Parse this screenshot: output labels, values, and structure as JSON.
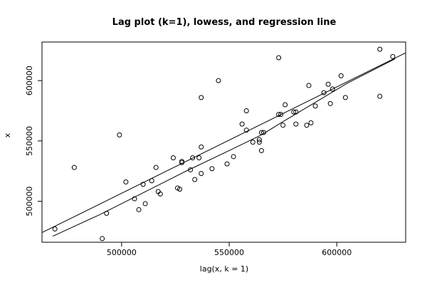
{
  "chart_data": {
    "type": "scatter",
    "title": "Lag plot (k=1), lowess, and regression line",
    "xlabel": "lag(x, k = 1)",
    "ylabel": "x",
    "xlim": [
      463000,
      632000
    ],
    "ylim": [
      466000,
      632000
    ],
    "x_ticks": [
      500000,
      550000,
      600000
    ],
    "x_tick_labels": [
      "500000",
      "550000",
      "600000"
    ],
    "y_ticks": [
      500000,
      550000,
      600000
    ],
    "y_tick_labels": [
      "500000",
      "550000",
      "600000"
    ],
    "points": [
      [
        469000,
        477000
      ],
      [
        478000,
        528000
      ],
      [
        491000,
        469000
      ],
      [
        493000,
        490000
      ],
      [
        499000,
        555000
      ],
      [
        502000,
        516000
      ],
      [
        506000,
        502000
      ],
      [
        508000,
        493000
      ],
      [
        510000,
        514000
      ],
      [
        511000,
        498000
      ],
      [
        514000,
        517000
      ],
      [
        516000,
        528000
      ],
      [
        517000,
        508000
      ],
      [
        518000,
        506000
      ],
      [
        524000,
        536000
      ],
      [
        526000,
        511000
      ],
      [
        527000,
        510000
      ],
      [
        528000,
        533000
      ],
      [
        528000,
        532000
      ],
      [
        532000,
        526000
      ],
      [
        533000,
        536000
      ],
      [
        534000,
        518000
      ],
      [
        536000,
        536000
      ],
      [
        537000,
        523000
      ],
      [
        537000,
        545000
      ],
      [
        537000,
        586000
      ],
      [
        542000,
        527000
      ],
      [
        545000,
        600000
      ],
      [
        549000,
        531000
      ],
      [
        552000,
        537000
      ],
      [
        556000,
        564000
      ],
      [
        558000,
        575000
      ],
      [
        558000,
        559000
      ],
      [
        561000,
        549000
      ],
      [
        564000,
        551000
      ],
      [
        564000,
        549000
      ],
      [
        565000,
        542000
      ],
      [
        565000,
        557000
      ],
      [
        566000,
        557000
      ],
      [
        573000,
        572000
      ],
      [
        573000,
        619000
      ],
      [
        574000,
        572000
      ],
      [
        575000,
        563000
      ],
      [
        576000,
        580000
      ],
      [
        580000,
        574000
      ],
      [
        581000,
        564000
      ],
      [
        581000,
        574000
      ],
      [
        586000,
        563000
      ],
      [
        587000,
        596000
      ],
      [
        588000,
        565000
      ],
      [
        590000,
        579000
      ],
      [
        594000,
        590000
      ],
      [
        596000,
        597000
      ],
      [
        597000,
        581000
      ],
      [
        598000,
        593000
      ],
      [
        602000,
        604000
      ],
      [
        604000,
        586000
      ],
      [
        620000,
        626000
      ],
      [
        620000,
        587000
      ],
      [
        626000,
        620000
      ]
    ],
    "regression_line": [
      [
        463000,
        474000
      ],
      [
        632000,
        623000
      ]
    ],
    "lowess_line": [
      [
        468000,
        471000
      ],
      [
        490000,
        489000
      ],
      [
        510000,
        507000
      ],
      [
        530000,
        525000
      ],
      [
        550000,
        542000
      ],
      [
        565000,
        555000
      ],
      [
        575000,
        566000
      ],
      [
        590000,
        582000
      ],
      [
        605000,
        598000
      ],
      [
        627000,
        618000
      ]
    ],
    "grid": false
  }
}
